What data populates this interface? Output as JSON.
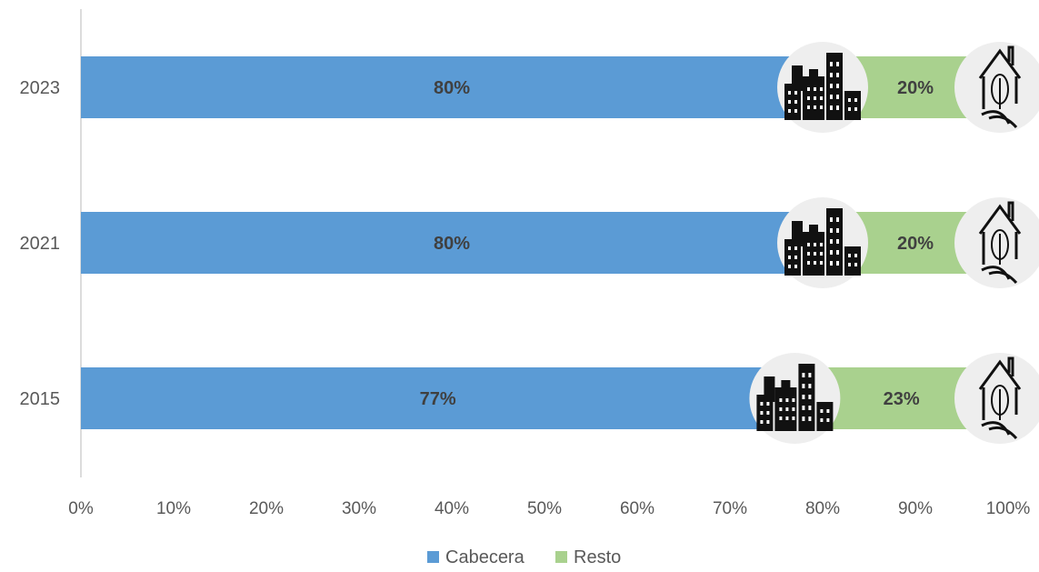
{
  "chart_data": {
    "type": "bar",
    "orientation": "horizontal",
    "stacked": true,
    "categories": [
      "2023",
      "2021",
      "2015"
    ],
    "series": [
      {
        "name": "Cabecera",
        "values": [
          80,
          80,
          77
        ],
        "color": "#5B9BD5",
        "labels": [
          "80%",
          "80%",
          "77%"
        ]
      },
      {
        "name": "Resto",
        "values": [
          20,
          20,
          23
        ],
        "color": "#A9D18E",
        "labels": [
          "20%",
          "20%",
          "23%"
        ]
      }
    ],
    "x_ticks": [
      "0%",
      "10%",
      "20%",
      "30%",
      "40%",
      "50%",
      "60%",
      "70%",
      "80%",
      "90%",
      "100%"
    ],
    "xlim": [
      0,
      100
    ],
    "grid": false,
    "legend_position": "bottom",
    "icons": {
      "boundary_marker": "city-buildings-icon",
      "end_marker": "rural-house-tree-icon"
    }
  }
}
